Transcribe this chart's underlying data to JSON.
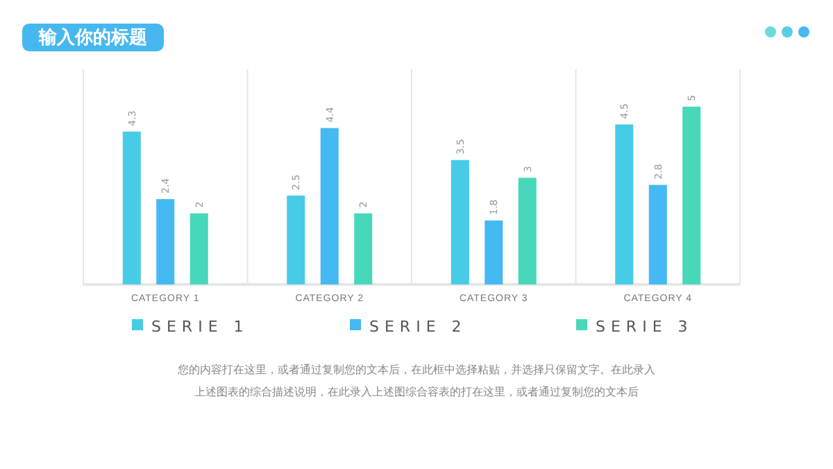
{
  "chart_data": {
    "type": "bar",
    "title": "输入你的标题",
    "categories": [
      "CATEGORY 1",
      "CATEGORY 2",
      "CATEGORY 3",
      "CATEGORY 4"
    ],
    "series": [
      {
        "name": "SERIE 1",
        "color": "#47cbe6",
        "values": [
          4.3,
          2.5,
          3.5,
          4.5
        ]
      },
      {
        "name": "SERIE 2",
        "color": "#45b9f1",
        "values": [
          2.4,
          4.4,
          1.8,
          2.8
        ]
      },
      {
        "name": "SERIE 3",
        "color": "#47d8b9",
        "values": [
          2,
          2,
          3,
          5
        ]
      }
    ],
    "tick_labels": "x",
    "data_labels": true,
    "legend": "bottom",
    "annotations": [
      "您的内容打在这里，或者通过复制您的文本后，在此框中选择粘贴，并选择只保留文字。在此录入",
      "上述图表的综合描述说明，在此录入上述图综合容表的打在这里，或者通过复制您的文本后"
    ]
  }
}
